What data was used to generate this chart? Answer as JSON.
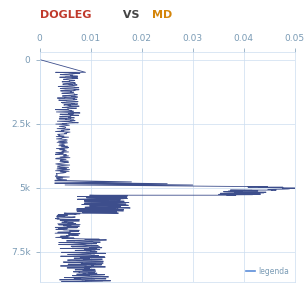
{
  "title_dogleg": "DOGLEG",
  "title_vs": " VS ",
  "title_md": "MD",
  "title_color_dogleg": "#c0392b",
  "title_color_vs": "#444444",
  "title_color_md": "#d4850a",
  "xlim": [
    0,
    0.05
  ],
  "ylim": [
    8700,
    -300
  ],
  "xticks": [
    0,
    0.01,
    0.02,
    0.03,
    0.04,
    0.05
  ],
  "yticks": [
    0,
    2500,
    5000,
    7500
  ],
  "ytick_labels": [
    "0",
    "2.5k",
    "5k",
    "7.5k"
  ],
  "line_color": "#3d4e8c",
  "legend_label": "legenda",
  "legend_line_color": "#5b8dd9",
  "bg_color": "#ffffff",
  "grid_color": "#ccddf0",
  "tick_color": "#7a9bb5",
  "figsize": [
    3.04,
    2.88
  ],
  "dpi": 100
}
